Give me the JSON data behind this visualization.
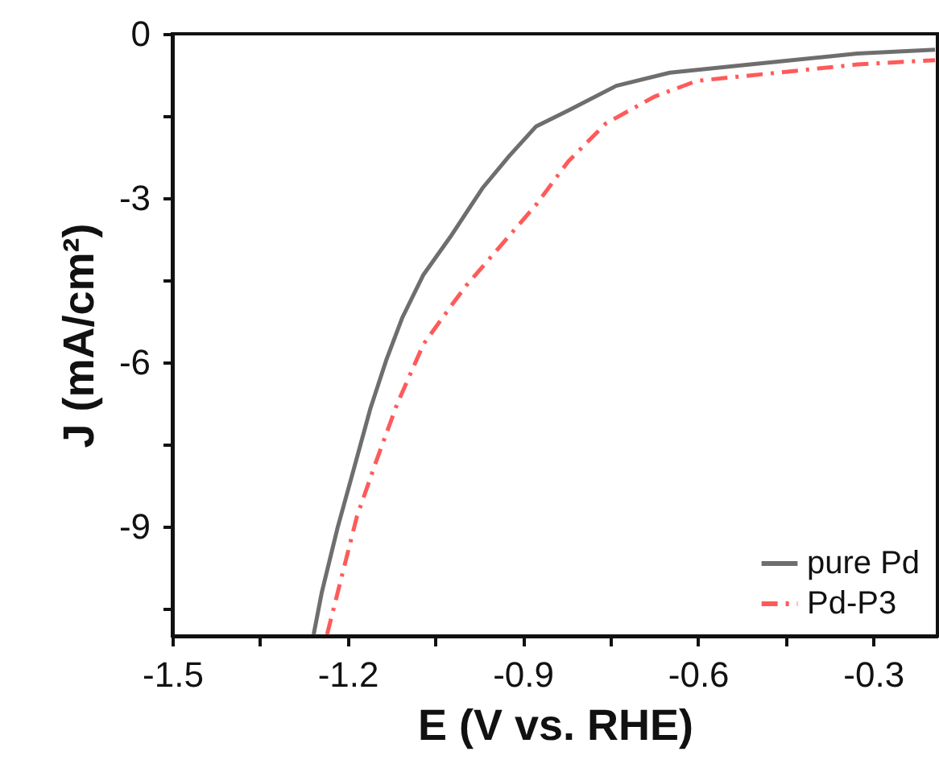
{
  "chart_data": {
    "type": "line",
    "xlabel": "E (V vs. RHE)",
    "ylabel": "J (mA/cm²)",
    "xlim": [
      -1.5,
      -0.19
    ],
    "ylim": [
      -11,
      0
    ],
    "xticks": [
      -1.5,
      {
        "value": -1.35,
        "label": null
      },
      -1.2,
      {
        "value": -1.05,
        "label": null
      },
      -0.9,
      {
        "value": -0.75,
        "label": null
      },
      -0.6,
      {
        "value": -0.45,
        "label": null
      },
      -0.3
    ],
    "yticks": [
      {
        "value": -10.5,
        "label": null
      },
      -9,
      {
        "value": -7.5,
        "label": null
      },
      -6,
      {
        "value": -4.5,
        "label": null
      },
      -3,
      {
        "value": -1.5,
        "label": null
      },
      0
    ],
    "grid": false,
    "legend": "bottom right",
    "series": [
      {
        "name": "pure Pd",
        "color": "#6e6e6e",
        "line_style": "solid",
        "x": [
          -1.258,
          -1.244,
          -1.217,
          -1.189,
          -1.161,
          -1.134,
          -1.106,
          -1.07,
          -1.024,
          -0.969,
          -0.923,
          -0.877,
          -0.822,
          -0.74,
          -0.648,
          -0.51,
          -0.327,
          -0.194
        ],
        "values": [
          -10.97,
          -10.2,
          -9.02,
          -7.94,
          -6.85,
          -5.97,
          -5.18,
          -4.4,
          -3.71,
          -2.82,
          -2.23,
          -1.69,
          -1.4,
          -0.95,
          -0.71,
          -0.56,
          -0.36,
          -0.29
        ]
      },
      {
        "name": "Pd-P3",
        "color": "#ff5a5a",
        "line_style": "dashed",
        "x": [
          -1.235,
          -1.212,
          -1.184,
          -1.152,
          -1.115,
          -1.07,
          -1.024,
          -0.996,
          -0.932,
          -0.877,
          -0.822,
          -0.758,
          -0.675,
          -0.602,
          -0.51,
          -0.327,
          -0.194
        ],
        "values": [
          -10.97,
          -10.0,
          -8.82,
          -7.84,
          -6.76,
          -5.67,
          -4.99,
          -4.59,
          -3.8,
          -3.12,
          -2.33,
          -1.64,
          -1.15,
          -0.86,
          -0.76,
          -0.56,
          -0.48
        ]
      }
    ]
  }
}
